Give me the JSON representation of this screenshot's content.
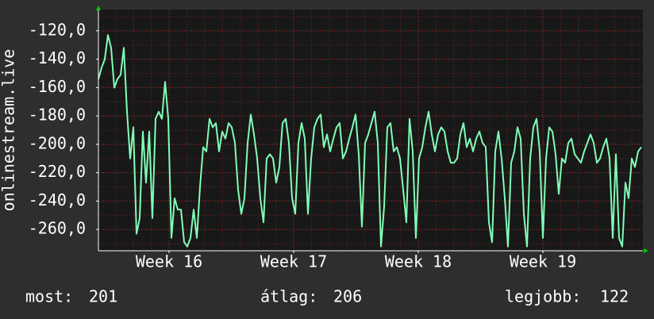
{
  "chart_data": {
    "type": "line",
    "y_axis_label": "onlinestream.live",
    "series": [
      {
        "color": "#80ffb8",
        "values": [
          -154,
          -146,
          -140,
          -123,
          -132,
          -160,
          -154,
          -151,
          -132,
          -177,
          -210,
          -188,
          -263,
          -252,
          -191,
          -227,
          -191,
          -252,
          -182,
          -177,
          -182,
          -156,
          -182,
          -266,
          -238,
          -246,
          -246,
          -269,
          -272,
          -266,
          -246,
          -266,
          -230,
          -202,
          -205,
          -182,
          -188,
          -185,
          -205,
          -191,
          -196,
          -185,
          -188,
          -199,
          -232,
          -249,
          -238,
          -199,
          -179,
          -193,
          -210,
          -238,
          -255,
          -210,
          -207,
          -210,
          -227,
          -216,
          -185,
          -182,
          -199,
          -238,
          -249,
          -199,
          -185,
          -196,
          -249,
          -210,
          -188,
          -182,
          -179,
          -202,
          -193,
          -205,
          -196,
          -188,
          -185,
          -210,
          -205,
          -196,
          -188,
          -179,
          -207,
          -258,
          -199,
          -193,
          -185,
          -177,
          -199,
          -272,
          -244,
          -188,
          -185,
          -205,
          -202,
          -210,
          -232,
          -255,
          -182,
          -205,
          -266,
          -210,
          -202,
          -188,
          -177,
          -193,
          -205,
          -193,
          -188,
          -191,
          -205,
          -213,
          -213,
          -210,
          -193,
          -185,
          -202,
          -196,
          -205,
          -196,
          -191,
          -199,
          -202,
          -255,
          -269,
          -205,
          -191,
          -210,
          -238,
          -272,
          -213,
          -205,
          -188,
          -196,
          -249,
          -272,
          -210,
          -188,
          -182,
          -205,
          -266,
          -210,
          -188,
          -191,
          -207,
          -235,
          -210,
          -213,
          -199,
          -196,
          -207,
          -210,
          -213,
          -205,
          -199,
          -193,
          -199,
          -213,
          -210,
          -202,
          -196,
          -210,
          -266,
          -207,
          -266,
          -272,
          -227,
          -238,
          -210,
          -216,
          -205,
          -202
        ]
      }
    ],
    "xlim": [
      0,
      171.5
    ],
    "xticks": [
      {
        "value": 22.25,
        "label": "Week 16"
      },
      {
        "value": 61.5,
        "label": "Week 17"
      },
      {
        "value": 100.75,
        "label": "Week 18"
      },
      {
        "value": 140,
        "label": "Week 19"
      }
    ],
    "ylim": [
      -275,
      -105
    ],
    "yticks": [
      {
        "value": -120,
        "label": "-120,0"
      },
      {
        "value": -140,
        "label": "-140,0"
      },
      {
        "value": -160,
        "label": "-160,0"
      },
      {
        "value": -180,
        "label": "-180,0"
      },
      {
        "value": -200,
        "label": "-200,0"
      },
      {
        "value": -220,
        "label": "-220,0"
      },
      {
        "value": -240,
        "label": "-240,0"
      },
      {
        "value": -260,
        "label": "-260,0"
      }
    ],
    "grid": true,
    "stats": [
      {
        "label": "most:",
        "value": 201
      },
      {
        "label": "átlag:",
        "value": 206
      },
      {
        "label": "legjobb:",
        "value": 122
      }
    ]
  }
}
